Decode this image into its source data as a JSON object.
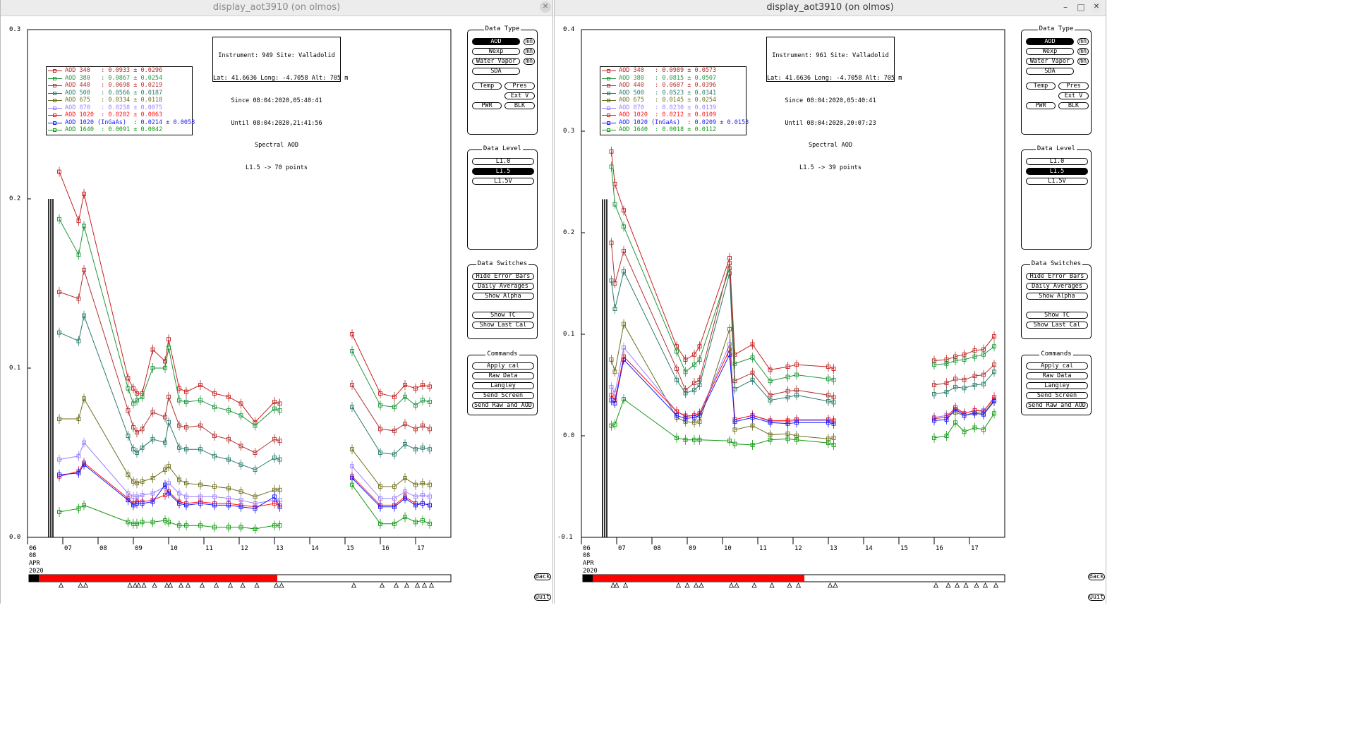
{
  "windows": [
    {
      "title": "display_aot3910 (on olmos)",
      "active": false,
      "info": [
        "Instrument: 949 Site: Valladolid",
        "Lat: 41.6636 Long: -4.7058 Alt: 705 m",
        "Since 08:04:2020,05:40:41",
        "Until 08:04:2020,21:41:56",
        "Spectral AOD",
        "L1.5 -> 70 points"
      ],
      "legend": [
        {
          "label": "AOD 340   : 0.0933 ± 0.0296",
          "color": "#c82020"
        },
        {
          "label": "AOD 380   : 0.0867 ± 0.0254",
          "color": "#20963c"
        },
        {
          "label": "AOD 440   : 0.0698 ± 0.0219",
          "color": "#b43232"
        },
        {
          "label": "AOD 500   : 0.0566 ± 0.0187",
          "color": "#2a7a6a"
        },
        {
          "label": "AOD 675   : 0.0334 ± 0.0118",
          "color": "#6e6e1e"
        },
        {
          "label": "AOD 870   : 0.0258 ± 0.0075",
          "color": "#9a82ff"
        },
        {
          "label": "AOD 1020  : 0.0202 ± 0.0063",
          "color": "#ff1414"
        },
        {
          "label": "AOD 1020 (InGaAs)  : 0.0214 ± 0.0058",
          "color": "#1a1aff"
        },
        {
          "label": "AOD 1640  : 0.0091 ± 0.0042",
          "color": "#119911"
        }
      ],
      "y_ticks": [
        "0.3",
        "0.2",
        "0.1",
        "0.0"
      ],
      "x_ticks": [
        "06",
        "07",
        "08",
        "09",
        "10",
        "11",
        "12",
        "13",
        "14",
        "15",
        "16",
        "17"
      ],
      "date_label": [
        "08",
        "APR",
        "2020"
      ]
    },
    {
      "title": "display_aot3910 (on olmos)",
      "active": true,
      "info": [
        "Instrument: 961 Site: Valladolid",
        "Lat: 41.6636 Long: -4.7058 Alt: 705 m",
        "Since 08:04:2020,05:40:41",
        "Until 08:04:2020,20:07:23",
        "Spectral AOD",
        "L1.5 -> 39 points"
      ],
      "legend": [
        {
          "label": "AOD 340   : 0.0989 ± 0.0573",
          "color": "#c82020"
        },
        {
          "label": "AOD 380   : 0.0815 ± 0.0507",
          "color": "#20963c"
        },
        {
          "label": "AOD 440   : 0.0607 ± 0.0396",
          "color": "#b43232"
        },
        {
          "label": "AOD 500   : 0.0523 ± 0.0341",
          "color": "#2a7a6a"
        },
        {
          "label": "AOD 675   : 0.0145 ± 0.0254",
          "color": "#6e6e1e"
        },
        {
          "label": "AOD 870   : 0.0230 ± 0.0139",
          "color": "#9a82ff"
        },
        {
          "label": "AOD 1020  : 0.0212 ± 0.0109",
          "color": "#ff1414"
        },
        {
          "label": "AOD 1020 (InGaAs)  : 0.0209 ± 0.0153",
          "color": "#1a1aff"
        },
        {
          "label": "AOD 1640  : 0.0018 ± 0.0112",
          "color": "#119911"
        }
      ],
      "y_ticks": [
        "0.4",
        "0.3",
        "0.2",
        "0.1",
        "0.0",
        "-0.1"
      ],
      "x_ticks": [
        "06",
        "07",
        "08",
        "09",
        "10",
        "11",
        "12",
        "13",
        "14",
        "15",
        "16",
        "17"
      ],
      "date_label": [
        "08",
        "APR",
        "2020"
      ]
    }
  ],
  "controls": {
    "data_type_title": "Data Type",
    "data_type": [
      "AOD",
      "Wexp",
      "Water Vapor",
      "SDA"
    ],
    "mn": "mn",
    "temp": "Temp",
    "pres": "Pres",
    "extv": "Ext V",
    "pwr": "PWR",
    "blk": "BLK",
    "data_level_title": "Data Level",
    "data_level": [
      "L1.0",
      "L1.5",
      "L1.5V"
    ],
    "switches_title": "Data Switches",
    "switches": [
      "Hide Error Bars",
      "Daily Averages",
      "Show Alpha",
      "Show TC",
      "Show Last Cal"
    ],
    "commands_title": "Commands",
    "commands": [
      "Apply cal",
      "Raw Data",
      "Langley",
      "Send Screen",
      "Send Raw and AOD"
    ],
    "back": "Back",
    "quit": "Quit"
  },
  "chart_data": [
    {
      "type": "line",
      "title": "Spectral AOD",
      "xlabel": "08 APR 2020",
      "ylabel": "",
      "ylim": [
        0,
        0.3
      ],
      "xlim": [
        6,
        18
      ],
      "x": [
        6.9,
        7.45,
        7.6,
        8.85,
        9.0,
        9.1,
        9.25,
        9.55,
        9.9,
        10.0,
        10.3,
        10.5,
        10.9,
        11.3,
        11.7,
        12.05,
        12.45,
        13.0,
        13.15,
        15.2,
        16.0,
        16.4,
        16.7,
        17.0,
        17.2,
        17.4
      ],
      "series": [
        {
          "name": "AOD 340",
          "values": [
            0.216,
            0.187,
            0.203,
            0.094,
            0.088,
            0.085,
            0.085,
            0.111,
            0.104,
            0.117,
            0.088,
            0.086,
            0.09,
            0.085,
            0.083,
            0.079,
            0.068,
            0.08,
            0.079,
            0.12,
            0.085,
            0.083,
            0.09,
            0.088,
            0.09,
            0.089
          ]
        },
        {
          "name": "AOD 380",
          "values": [
            0.188,
            0.167,
            0.184,
            0.088,
            0.079,
            0.081,
            0.083,
            0.1,
            0.1,
            0.112,
            0.081,
            0.08,
            0.081,
            0.077,
            0.075,
            0.072,
            0.066,
            0.076,
            0.075,
            0.11,
            0.078,
            0.077,
            0.083,
            0.078,
            0.081,
            0.08
          ]
        },
        {
          "name": "AOD 440",
          "values": [
            0.145,
            0.141,
            0.158,
            0.075,
            0.065,
            0.062,
            0.064,
            0.074,
            0.071,
            0.083,
            0.066,
            0.065,
            0.066,
            0.06,
            0.058,
            0.054,
            0.05,
            0.058,
            0.057,
            0.09,
            0.064,
            0.063,
            0.067,
            0.064,
            0.066,
            0.064
          ]
        },
        {
          "name": "AOD 500",
          "values": [
            0.121,
            0.116,
            0.131,
            0.06,
            0.052,
            0.05,
            0.053,
            0.058,
            0.056,
            0.068,
            0.053,
            0.052,
            0.052,
            0.048,
            0.046,
            0.043,
            0.04,
            0.047,
            0.046,
            0.077,
            0.05,
            0.049,
            0.055,
            0.052,
            0.053,
            0.052
          ]
        },
        {
          "name": "AOD 675",
          "values": [
            0.07,
            0.07,
            0.082,
            0.037,
            0.033,
            0.032,
            0.033,
            0.035,
            0.04,
            0.042,
            0.034,
            0.032,
            0.031,
            0.03,
            0.029,
            0.027,
            0.024,
            0.028,
            0.028,
            0.052,
            0.03,
            0.03,
            0.035,
            0.031,
            0.032,
            0.031
          ]
        },
        {
          "name": "AOD 870",
          "values": [
            0.046,
            0.048,
            0.056,
            0.026,
            0.024,
            0.024,
            0.025,
            0.026,
            0.03,
            0.032,
            0.026,
            0.024,
            0.024,
            0.024,
            0.023,
            0.022,
            0.02,
            0.022,
            0.022,
            0.042,
            0.023,
            0.023,
            0.027,
            0.024,
            0.025,
            0.024
          ]
        },
        {
          "name": "AOD 1020",
          "values": [
            0.036,
            0.039,
            0.044,
            0.023,
            0.02,
            0.021,
            0.021,
            0.022,
            0.025,
            0.027,
            0.021,
            0.02,
            0.021,
            0.02,
            0.02,
            0.019,
            0.018,
            0.02,
            0.019,
            0.036,
            0.019,
            0.019,
            0.024,
            0.02,
            0.02,
            0.019
          ]
        },
        {
          "name": "AOD 1020 (InGaAs)",
          "values": [
            0.037,
            0.038,
            0.043,
            0.022,
            0.019,
            0.02,
            0.02,
            0.021,
            0.031,
            0.026,
            0.02,
            0.019,
            0.02,
            0.019,
            0.019,
            0.018,
            0.017,
            0.024,
            0.018,
            0.035,
            0.018,
            0.018,
            0.023,
            0.019,
            0.02,
            0.019
          ]
        },
        {
          "name": "AOD 1640",
          "values": [
            0.015,
            0.017,
            0.019,
            0.009,
            0.008,
            0.008,
            0.009,
            0.009,
            0.01,
            0.009,
            0.007,
            0.007,
            0.007,
            0.006,
            0.006,
            0.006,
            0.005,
            0.007,
            0.007,
            0.031,
            0.008,
            0.008,
            0.012,
            0.009,
            0.01,
            0.008
          ]
        }
      ]
    },
    {
      "type": "line",
      "title": "Spectral AOD",
      "xlabel": "08 APR 2020",
      "ylabel": "",
      "ylim": [
        -0.1,
        0.4
      ],
      "xlim": [
        6,
        18
      ],
      "x": [
        6.85,
        6.95,
        7.2,
        8.7,
        8.95,
        9.2,
        9.35,
        10.2,
        10.35,
        10.85,
        11.35,
        11.85,
        12.1,
        13.0,
        13.15,
        16.0,
        16.35,
        16.6,
        16.85,
        17.15,
        17.4,
        17.7
      ],
      "series": [
        {
          "name": "AOD 340",
          "values": [
            0.28,
            0.248,
            0.222,
            0.088,
            0.075,
            0.08,
            0.088,
            0.175,
            0.08,
            0.09,
            0.065,
            0.068,
            0.07,
            0.068,
            0.066,
            0.074,
            0.075,
            0.078,
            0.08,
            0.084,
            0.085,
            0.098
          ]
        },
        {
          "name": "AOD 380",
          "values": [
            0.265,
            0.228,
            0.206,
            0.083,
            0.063,
            0.07,
            0.075,
            0.165,
            0.071,
            0.077,
            0.054,
            0.058,
            0.06,
            0.056,
            0.055,
            0.07,
            0.071,
            0.074,
            0.075,
            0.078,
            0.08,
            0.088
          ]
        },
        {
          "name": "AOD 440",
          "values": [
            0.19,
            0.15,
            0.182,
            0.066,
            0.045,
            0.052,
            0.055,
            0.17,
            0.054,
            0.062,
            0.04,
            0.044,
            0.045,
            0.04,
            0.038,
            0.05,
            0.052,
            0.056,
            0.055,
            0.059,
            0.06,
            0.07
          ]
        },
        {
          "name": "AOD 500",
          "values": [
            0.153,
            0.125,
            0.162,
            0.055,
            0.042,
            0.045,
            0.05,
            0.16,
            0.046,
            0.055,
            0.035,
            0.038,
            0.04,
            0.034,
            0.033,
            0.041,
            0.043,
            0.048,
            0.047,
            0.05,
            0.051,
            0.063
          ]
        },
        {
          "name": "AOD 675",
          "values": [
            0.075,
            0.063,
            0.11,
            0.018,
            0.014,
            0.013,
            0.014,
            0.105,
            0.006,
            0.01,
            0.001,
            0.002,
            0.0,
            -0.003,
            -0.002,
            0.018,
            0.02,
            0.023,
            0.02,
            0.023,
            0.022,
            0.035
          ]
        },
        {
          "name": "AOD 870",
          "values": [
            0.048,
            0.042,
            0.087,
            0.024,
            0.02,
            0.02,
            0.022,
            0.09,
            0.016,
            0.02,
            0.014,
            0.014,
            0.015,
            0.015,
            0.014,
            0.018,
            0.02,
            0.026,
            0.022,
            0.025,
            0.025,
            0.036
          ]
        },
        {
          "name": "AOD 1020",
          "values": [
            0.04,
            0.035,
            0.078,
            0.024,
            0.019,
            0.02,
            0.022,
            0.085,
            0.016,
            0.02,
            0.015,
            0.015,
            0.016,
            0.016,
            0.015,
            0.017,
            0.018,
            0.028,
            0.022,
            0.025,
            0.024,
            0.038
          ]
        },
        {
          "name": "AOD 1020 (InGaAs)",
          "values": [
            0.035,
            0.032,
            0.075,
            0.02,
            0.017,
            0.018,
            0.02,
            0.08,
            0.014,
            0.018,
            0.013,
            0.012,
            0.013,
            0.013,
            0.012,
            0.015,
            0.016,
            0.026,
            0.02,
            0.022,
            0.021,
            0.034
          ]
        },
        {
          "name": "AOD 1640",
          "values": [
            0.01,
            0.011,
            0.036,
            -0.002,
            -0.004,
            -0.004,
            -0.004,
            -0.005,
            -0.008,
            -0.009,
            -0.004,
            -0.003,
            -0.004,
            -0.007,
            -0.009,
            -0.002,
            -0.0,
            0.013,
            0.004,
            0.008,
            0.006,
            0.022
          ]
        }
      ]
    }
  ]
}
